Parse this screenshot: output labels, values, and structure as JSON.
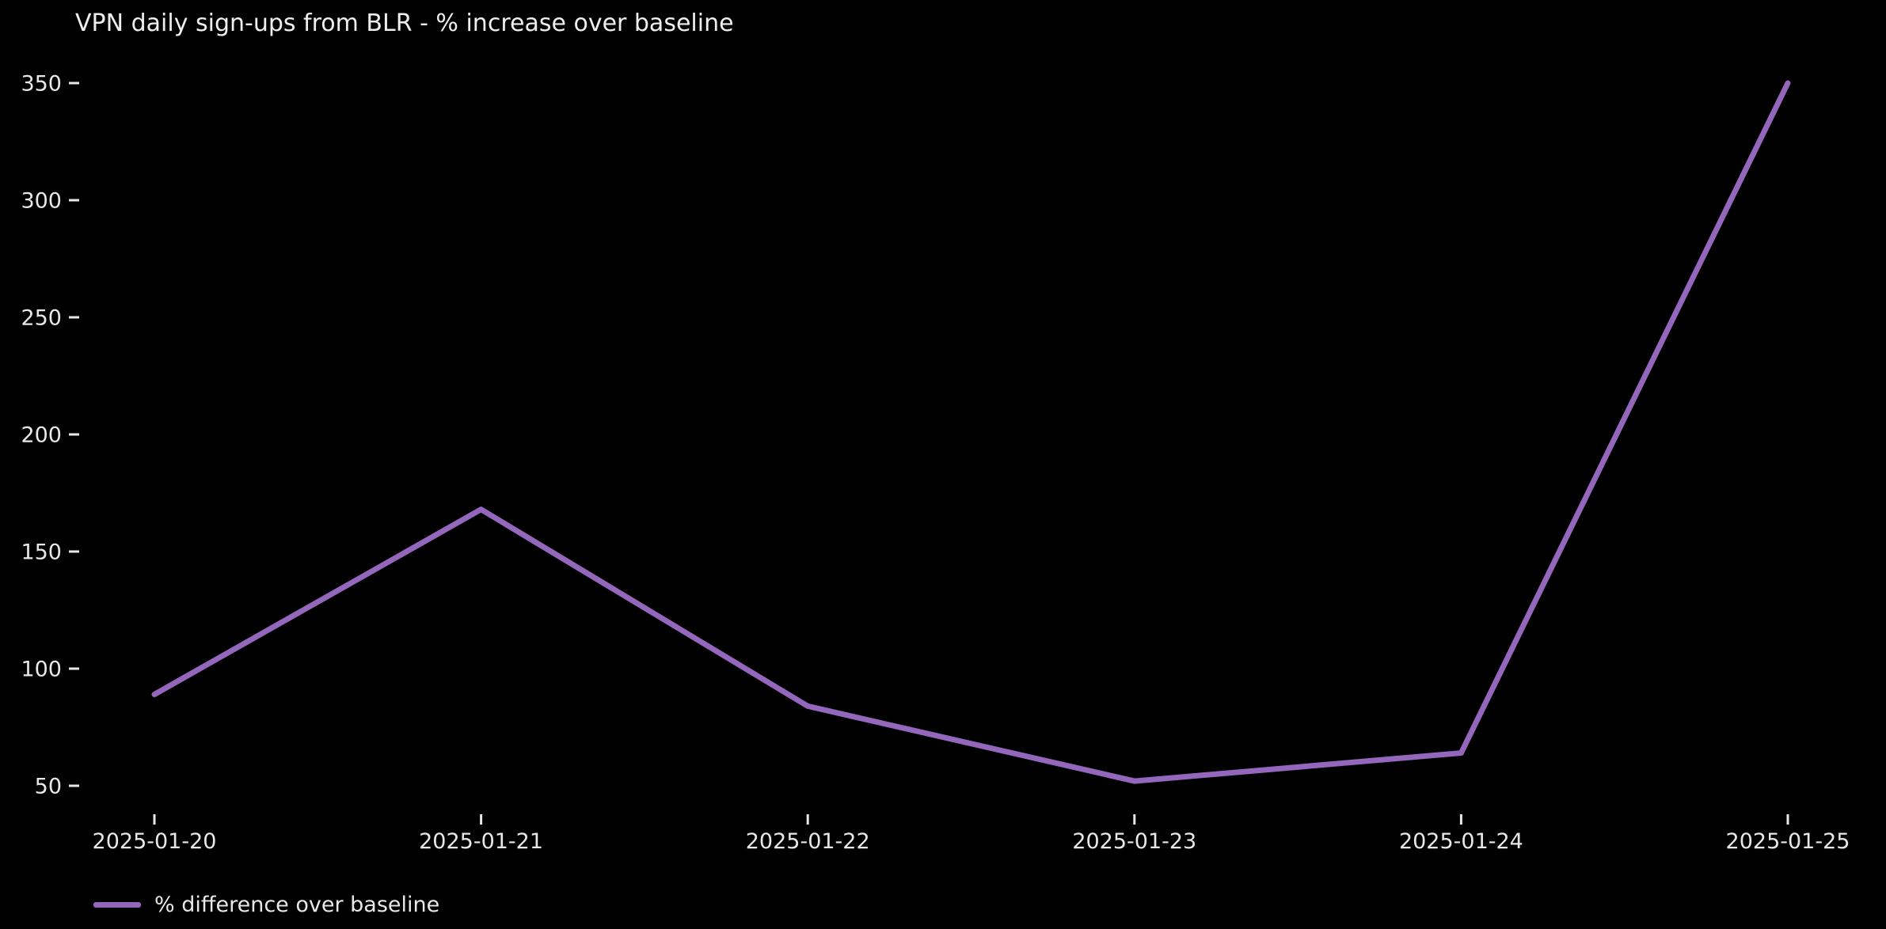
{
  "chart_data": {
    "type": "line",
    "title": "VPN daily sign-ups from BLR - % increase over baseline",
    "x": [
      "2025-01-20",
      "2025-01-21",
      "2025-01-22",
      "2025-01-23",
      "2025-01-24",
      "2025-01-25"
    ],
    "series": [
      {
        "name": "% difference over baseline",
        "values": [
          89,
          168,
          84,
          52,
          64,
          350
        ],
        "color": "#9467bd"
      }
    ],
    "xlabel": "",
    "ylabel": "",
    "ylim": [
      50,
      350
    ],
    "yticks": [
      50,
      100,
      150,
      200,
      250,
      300,
      350
    ],
    "grid": false,
    "legend_position": "below-axis-lower-left",
    "colors": {
      "background": "#000000",
      "text": "#e8e8e8",
      "tick": "#e8e8e8",
      "line": "#9467bd"
    }
  }
}
